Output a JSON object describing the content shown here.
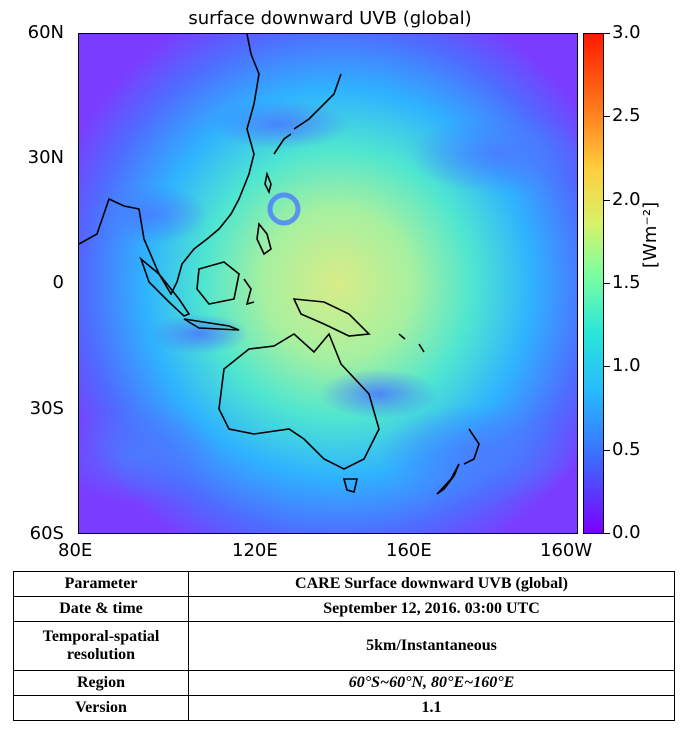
{
  "title": "surface downward UVB (global)",
  "y_axis_labels": [
    "60N",
    "30N",
    "0",
    "30S",
    "60S"
  ],
  "x_axis_labels": [
    "80E",
    "120E",
    "160E",
    "160W"
  ],
  "colorbar": {
    "labels": [
      "3.0",
      "2.5",
      "2.0",
      "1.5",
      "1.0",
      "0.5",
      "0.0"
    ],
    "unit": "[Wm⁻²]"
  },
  "table": [
    {
      "key": "Parameter",
      "value": "CARE Surface downward UVB (global)"
    },
    {
      "key": "Date & time",
      "value": "September 12, 2016. 03:00 UTC"
    },
    {
      "key": "Temporal-spatial resolution",
      "value": "5km/Instantaneous"
    },
    {
      "key": "Region",
      "value": "60°S~60°N, 80°E~160°E"
    },
    {
      "key": "Version",
      "value": "1.1"
    }
  ]
}
